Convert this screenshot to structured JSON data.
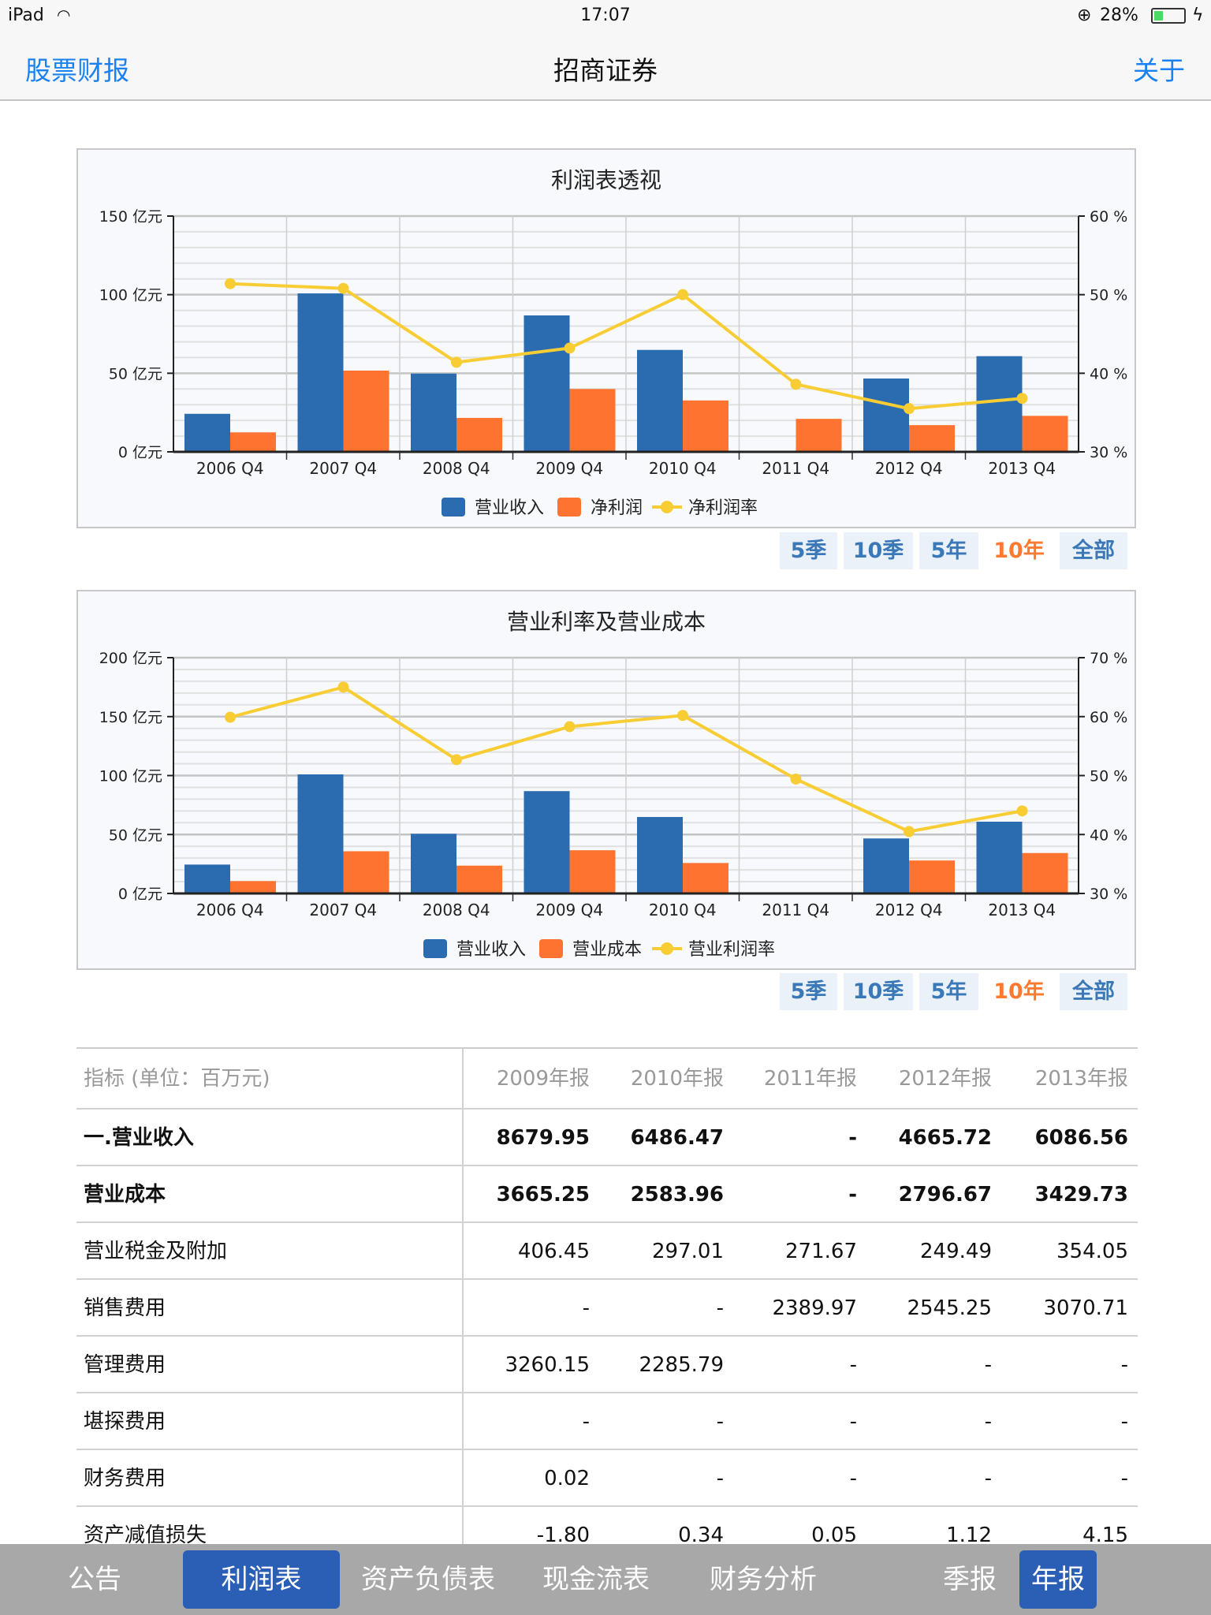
{
  "status": {
    "device": "iPad",
    "time": "17:07",
    "battery": "28%"
  },
  "nav": {
    "back": "股票财报",
    "title": "招商证券",
    "about": "关于"
  },
  "colors": {
    "revenue": "#2b6cb0",
    "second": "#ff7330",
    "line": "#f8cd34",
    "active": "#ff7a30",
    "tabSelected": "#2b5fb5"
  },
  "range_buttons": [
    "5季",
    "10季",
    "5年",
    "10年",
    "全部"
  ],
  "active_range": "10年",
  "chart_data": [
    {
      "type": "bar",
      "title": "利润表透视",
      "categories": [
        "2006 Q4",
        "2007 Q4",
        "2008 Q4",
        "2009 Q4",
        "2010 Q4",
        "2011 Q4",
        "2012 Q4",
        "2013 Q4"
      ],
      "yleft": {
        "unit": "亿元",
        "ticks": [
          "0 亿元",
          "50 亿元",
          "100 亿元",
          "150 亿元"
        ],
        "range": [
          0,
          150
        ]
      },
      "yright": {
        "unit": "%",
        "ticks": [
          "30 %",
          "40 %",
          "50 %",
          "60 %"
        ],
        "range": [
          30,
          60
        ]
      },
      "series": [
        {
          "name": "营业收入",
          "kind": "bar",
          "values": [
            24.2,
            100.8,
            49.8,
            86.8,
            64.86,
            0,
            46.66,
            60.87
          ]
        },
        {
          "name": "净利润",
          "kind": "bar",
          "values": [
            12.4,
            51.7,
            21.6,
            40.0,
            32.7,
            21.0,
            17.0,
            22.9
          ]
        },
        {
          "name": "净利润率",
          "kind": "line",
          "values": [
            51.4,
            50.8,
            41.4,
            43.2,
            50.0,
            38.6,
            35.5,
            36.8
          ]
        }
      ],
      "legend": "bottom"
    },
    {
      "type": "bar",
      "title": "营业利率及营业成本",
      "categories": [
        "2006 Q4",
        "2007 Q4",
        "2008 Q4",
        "2009 Q4",
        "2010 Q4",
        "2011 Q4",
        "2012 Q4",
        "2013 Q4"
      ],
      "yleft": {
        "unit": "亿元",
        "ticks": [
          "0 亿元",
          "50 亿元",
          "100 亿元",
          "150 亿元",
          "200 亿元"
        ],
        "range": [
          0,
          200
        ]
      },
      "yright": {
        "unit": "%",
        "ticks": [
          "30 %",
          "40 %",
          "50 %",
          "60 %",
          "70 %"
        ],
        "range": [
          30,
          70
        ]
      },
      "series": [
        {
          "name": "营业收入",
          "kind": "bar",
          "values": [
            24.5,
            101.0,
            50.6,
            86.8,
            64.86,
            0,
            46.66,
            60.87
          ]
        },
        {
          "name": "营业成本",
          "kind": "bar",
          "values": [
            10.5,
            35.8,
            23.6,
            36.65,
            25.84,
            0,
            27.97,
            34.3
          ]
        },
        {
          "name": "营业利润率",
          "kind": "line",
          "values": [
            59.9,
            65.0,
            52.7,
            58.3,
            60.2,
            49.4,
            40.5,
            44.0
          ]
        }
      ],
      "legend": "bottom"
    }
  ],
  "table": {
    "header": {
      "label": "指标 (单位：百万元)",
      "cols": [
        "2009年报",
        "2010年报",
        "2011年报",
        "2012年报",
        "2013年报"
      ]
    },
    "rows": [
      {
        "label": "一.营业收入",
        "bold": true,
        "values": [
          "8679.95",
          "6486.47",
          "-",
          "4665.72",
          "6086.56"
        ]
      },
      {
        "label": "营业成本",
        "bold": true,
        "values": [
          "3665.25",
          "2583.96",
          "-",
          "2796.67",
          "3429.73"
        ]
      },
      {
        "label": "营业税金及附加",
        "values": [
          "406.45",
          "297.01",
          "271.67",
          "249.49",
          "354.05"
        ]
      },
      {
        "label": "销售费用",
        "values": [
          "-",
          "-",
          "2389.97",
          "2545.25",
          "3070.71"
        ]
      },
      {
        "label": "管理费用",
        "values": [
          "3260.15",
          "2285.79",
          "-",
          "-",
          "-"
        ]
      },
      {
        "label": "堪探费用",
        "values": [
          "-",
          "-",
          "-",
          "-",
          "-"
        ]
      },
      {
        "label": "财务费用",
        "values": [
          "0.02",
          "-",
          "-",
          "-",
          "-"
        ]
      },
      {
        "label": "资产减值损失",
        "values": [
          "-1.80",
          "0.34",
          "0.05",
          "1.12",
          "4.15"
        ]
      }
    ]
  },
  "tabs": {
    "items": [
      "公告",
      "利润表",
      "资产负债表",
      "现金流表",
      "财务分析"
    ],
    "selected": "利润表",
    "period": [
      "季报",
      "年报"
    ],
    "period_selected": "年报"
  }
}
